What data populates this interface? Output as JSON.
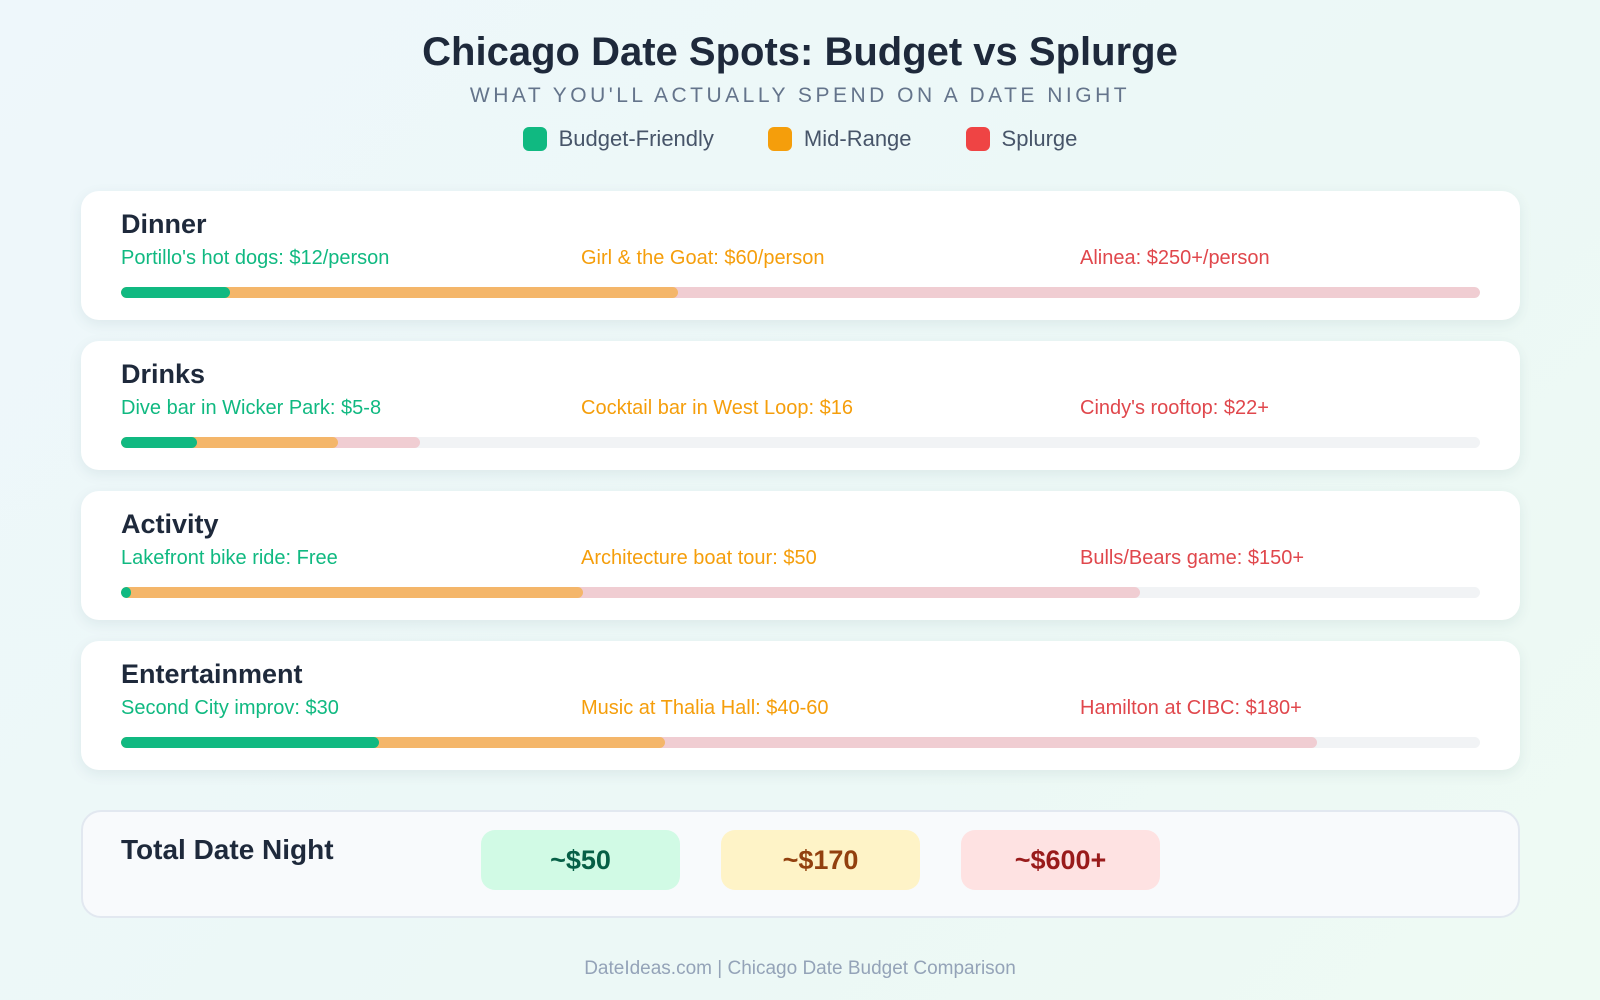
{
  "title": "Chicago Date Spots: Budget vs Splurge",
  "subtitle": "WHAT YOU'LL ACTUALLY SPEND ON A DATE NIGHT",
  "legend": [
    {
      "label": "Budget-Friendly",
      "color": "#10b981"
    },
    {
      "label": "Mid-Range",
      "color": "#f59e0b"
    },
    {
      "label": "Splurge",
      "color": "#ef4444"
    }
  ],
  "chart_data": {
    "type": "bar",
    "categories": [
      "Dinner",
      "Drinks",
      "Activity",
      "Entertainment"
    ],
    "series": [
      {
        "name": "Budget-Friendly",
        "color": "#10b981",
        "values": [
          0.08,
          0.056,
          0.007,
          0.19
        ]
      },
      {
        "name": "Mid-Range",
        "color": "#f4b66a",
        "values": [
          0.41,
          0.16,
          0.34,
          0.4
        ]
      },
      {
        "name": "Splurge",
        "color": "#f0cdd2",
        "values": [
          1.0,
          0.22,
          0.75,
          0.88
        ]
      }
    ]
  },
  "rows": [
    {
      "category": "Dinner",
      "budget": "Portillo's hot dogs: $12/person",
      "mid": "Girl & the Goat: $60/person",
      "splurge": "Alinea: $250+/person"
    },
    {
      "category": "Drinks",
      "budget": "Dive bar in Wicker Park: $5-8",
      "mid": "Cocktail bar in West Loop: $16",
      "splurge": "Cindy's rooftop: $22+"
    },
    {
      "category": "Activity",
      "budget": "Lakefront bike ride: Free",
      "mid": "Architecture boat tour: $50",
      "splurge": "Bulls/Bears game: $150+"
    },
    {
      "category": "Entertainment",
      "budget": "Second City improv: $30",
      "mid": "Music at Thalia Hall: $40-60",
      "splurge": "Hamilton at CIBC: $180+"
    }
  ],
  "total": {
    "label": "Total Date Night",
    "budget": "~$50",
    "mid": "~$170",
    "splurge": "~$600+"
  },
  "footer": "DateIdeas.com | Chicago Date Budget Comparison"
}
